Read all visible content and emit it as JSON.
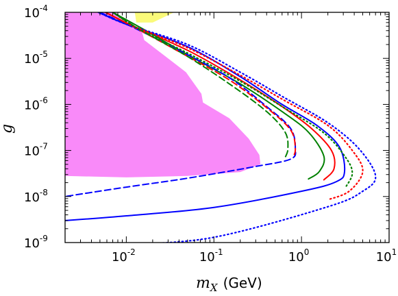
{
  "chart_data": {
    "type": "line",
    "title": "",
    "xlabel": {
      "symbol": "m",
      "subscript": "X",
      "unit": "(GeV)"
    },
    "ylabel": "g",
    "xscale": "log",
    "yscale": "log",
    "xlim": [
      0.002,
      10
    ],
    "ylim": [
      1e-09,
      0.0001
    ],
    "x_ticks": [
      {
        "base": "10",
        "exp": "-2",
        "value": 0.01
      },
      {
        "base": "10",
        "exp": "-1",
        "value": 0.1
      },
      {
        "base": "10",
        "exp": "0",
        "value": 1
      },
      {
        "base": "10",
        "exp": "1",
        "value": 10
      }
    ],
    "y_ticks": [
      {
        "base": "10",
        "exp": "-4",
        "value": 0.0001
      },
      {
        "base": "10",
        "exp": "-5",
        "value": 1e-05
      },
      {
        "base": "10",
        "exp": "-6",
        "value": 1e-06
      },
      {
        "base": "10",
        "exp": "-7",
        "value": 1e-07
      },
      {
        "base": "10",
        "exp": "-8",
        "value": 1e-08
      },
      {
        "base": "10",
        "exp": "-9",
        "value": 1e-09
      }
    ],
    "grid": false,
    "regions": [
      {
        "color": "#f98af9",
        "points": [
          [
            0.002,
            2.8e-08
          ],
          [
            0.01,
            2.6e-08
          ],
          [
            0.05,
            2.8e-08
          ],
          [
            0.2,
            3.4e-08
          ],
          [
            0.34,
            5e-08
          ],
          [
            0.33,
            8e-08
          ],
          [
            0.25,
            1.8e-07
          ],
          [
            0.15,
            5e-07
          ],
          [
            0.075,
            1.1e-06
          ],
          [
            0.072,
            1.7e-06
          ],
          [
            0.048,
            5e-06
          ],
          [
            0.025,
            1.3e-05
          ],
          [
            0.016,
            2.5e-05
          ],
          [
            0.015,
            4e-05
          ],
          [
            0.0075,
            0.0001
          ],
          [
            0.002,
            0.0001
          ]
        ]
      },
      {
        "color": "#fafa7a",
        "points": [
          [
            0.0125,
            0.0001
          ],
          [
            0.013,
            6e-05
          ],
          [
            0.02,
            6e-05
          ],
          [
            0.035,
            0.0001
          ]
        ]
      }
    ],
    "series": [
      {
        "color": "#0000ff",
        "style": "solid",
        "points": [
          [
            0.0048,
            0.0001
          ],
          [
            0.01,
            5.5e-05
          ],
          [
            0.05,
            1.8e-05
          ],
          [
            0.2,
            4e-06
          ],
          [
            0.6,
            1e-06
          ],
          [
            1.5,
            3.5e-07
          ],
          [
            2.7,
            1.2e-07
          ],
          [
            3.1,
            3.5e-08
          ],
          [
            2.5,
            2.1e-08
          ],
          [
            1,
            1.3e-08
          ],
          [
            0.1,
            5.8e-09
          ],
          [
            0.01,
            3.8e-09
          ],
          [
            0.002,
            3e-09
          ]
        ]
      },
      {
        "color": "#ff0000",
        "style": "solid",
        "points": [
          [
            0.0058,
            0.0001
          ],
          [
            0.012,
            5e-05
          ],
          [
            0.05,
            1.5e-05
          ],
          [
            0.2,
            3.4e-06
          ],
          [
            0.6,
            9e-07
          ],
          [
            1.3,
            3e-07
          ],
          [
            2.2,
            1e-07
          ],
          [
            2.35,
            4e-08
          ],
          [
            1.8,
            2.3e-08
          ]
        ]
      },
      {
        "color": "#008000",
        "style": "solid",
        "points": [
          [
            0.007,
            0.0001
          ],
          [
            0.015,
            4.5e-05
          ],
          [
            0.05,
            1.2e-05
          ],
          [
            0.2,
            2.8e-06
          ],
          [
            0.6,
            7e-07
          ],
          [
            1.2,
            2.5e-07
          ],
          [
            1.8,
            7.5e-08
          ],
          [
            1.6,
            3.5e-08
          ],
          [
            1.2,
            2.4e-08
          ]
        ]
      },
      {
        "color": "#0000ff",
        "style": "dashed",
        "points": [
          [
            0.005,
            0.0001
          ],
          [
            0.012,
            4.7e-05
          ],
          [
            0.04,
            1.5e-05
          ],
          [
            0.15,
            3.8e-06
          ],
          [
            0.4,
            9e-07
          ],
          [
            0.75,
            3e-07
          ],
          [
            0.85,
            1.1e-07
          ],
          [
            0.75,
            6.5e-08
          ],
          [
            0.3,
            4.5e-08
          ],
          [
            0.05,
            2.5e-08
          ],
          [
            0.01,
            1.6e-08
          ],
          [
            0.002,
            1e-08
          ]
        ]
      },
      {
        "color": "#ff0000",
        "style": "dashed",
        "points": [
          [
            0.0058,
            0.0001
          ],
          [
            0.013,
            4.5e-05
          ],
          [
            0.04,
            1.4e-05
          ],
          [
            0.15,
            3.4e-06
          ],
          [
            0.4,
            8.5e-07
          ],
          [
            0.75,
            2.8e-07
          ],
          [
            0.85,
            1.1e-07
          ],
          [
            0.8,
            7e-08
          ]
        ]
      },
      {
        "color": "#008000",
        "style": "dashed",
        "points": [
          [
            0.007,
            0.0001
          ],
          [
            0.015,
            4e-05
          ],
          [
            0.05,
            1.1e-05
          ],
          [
            0.15,
            2.8e-06
          ],
          [
            0.4,
            7e-07
          ],
          [
            0.65,
            2.5e-07
          ],
          [
            0.7,
            1.1e-07
          ],
          [
            0.65,
            7e-08
          ]
        ]
      },
      {
        "color": "#0000ff",
        "style": "dotted",
        "points": [
          [
            0.0048,
            0.0001
          ],
          [
            0.01,
            5.5e-05
          ],
          [
            0.05,
            2e-05
          ],
          [
            0.2,
            5e-06
          ],
          [
            0.6,
            1.5e-06
          ],
          [
            2,
            4e-07
          ],
          [
            4.5,
            1.1e-07
          ],
          [
            7,
            2.8e-08
          ],
          [
            5,
            1.3e-08
          ],
          [
            2,
            6e-09
          ],
          [
            0.1,
            1.3e-09
          ],
          [
            0.01,
            9e-10
          ]
        ]
      },
      {
        "color": "#ff0000",
        "style": "dotted",
        "points": [
          [
            0.0058,
            0.0001
          ],
          [
            0.012,
            5e-05
          ],
          [
            0.05,
            1.7e-05
          ],
          [
            0.2,
            4.3e-06
          ],
          [
            0.6,
            1.3e-06
          ],
          [
            2,
            3.5e-07
          ],
          [
            3.8,
            1e-07
          ],
          [
            5,
            3.5e-08
          ],
          [
            3.5,
            1.3e-08
          ],
          [
            2,
            8.5e-09
          ]
        ]
      },
      {
        "color": "#008000",
        "style": "dotted",
        "points": [
          [
            0.007,
            0.0001
          ],
          [
            0.015,
            4e-05
          ],
          [
            0.05,
            1.3e-05
          ],
          [
            0.2,
            3.2e-06
          ],
          [
            0.6,
            9e-07
          ],
          [
            1.8,
            2.4e-07
          ],
          [
            3.2,
            7e-08
          ],
          [
            3.8,
            3.2e-08
          ],
          [
            3.2,
            1.6e-08
          ]
        ]
      }
    ]
  }
}
